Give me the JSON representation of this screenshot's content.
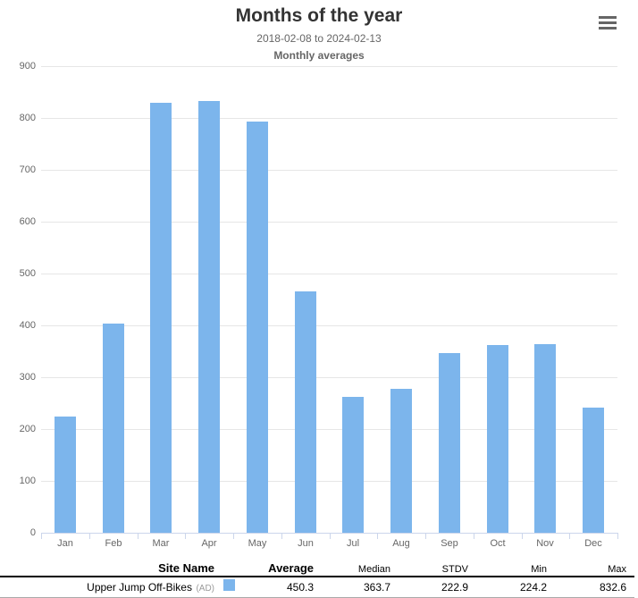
{
  "header": {
    "title": "Months of the year",
    "subtitle": "2018-02-08 to 2024-02-13",
    "subtitle2": "Monthly averages",
    "menu_icon": "hamburger-icon"
  },
  "chart_data": {
    "type": "bar",
    "title": "Months of the year",
    "subtitle": "2018-02-08 to 2024-02-13",
    "subtitle2": "Monthly averages",
    "categories": [
      "Jan",
      "Feb",
      "Mar",
      "Apr",
      "May",
      "Jun",
      "Jul",
      "Aug",
      "Sep",
      "Oct",
      "Nov",
      "Dec"
    ],
    "series": [
      {
        "name": "Upper Jump Off-Bikes (AD)",
        "values": [
          224.2,
          403,
          829,
          832.6,
          793,
          466,
          262,
          277,
          347,
          362.9,
          364.5,
          241
        ]
      }
    ],
    "xlabel": "",
    "ylabel": "",
    "ylim": [
      0,
      900
    ],
    "ytick_interval": 100,
    "grid": true,
    "legend_position": "none",
    "bar_color": "#7cb5ec",
    "gridline_color": "#e6e6e6",
    "axis_line_color": "#ccd6eb",
    "axis_label_color": "#666666"
  },
  "table": {
    "headers": [
      "Site Name",
      "Average",
      "Median",
      "STDV",
      "Min",
      "Max"
    ],
    "rows": [
      {
        "site_name": "Upper Jump Off-Bikes",
        "site_suffix": "(AD)",
        "swatch_color": "#7cb5ec",
        "average": "450.3",
        "median": "363.7",
        "stdv": "222.9",
        "min": "224.2",
        "max": "832.6"
      }
    ]
  },
  "colors": {
    "title": "#333333",
    "subtitle": "#666666",
    "accent_blue": "#7cb5ec"
  }
}
